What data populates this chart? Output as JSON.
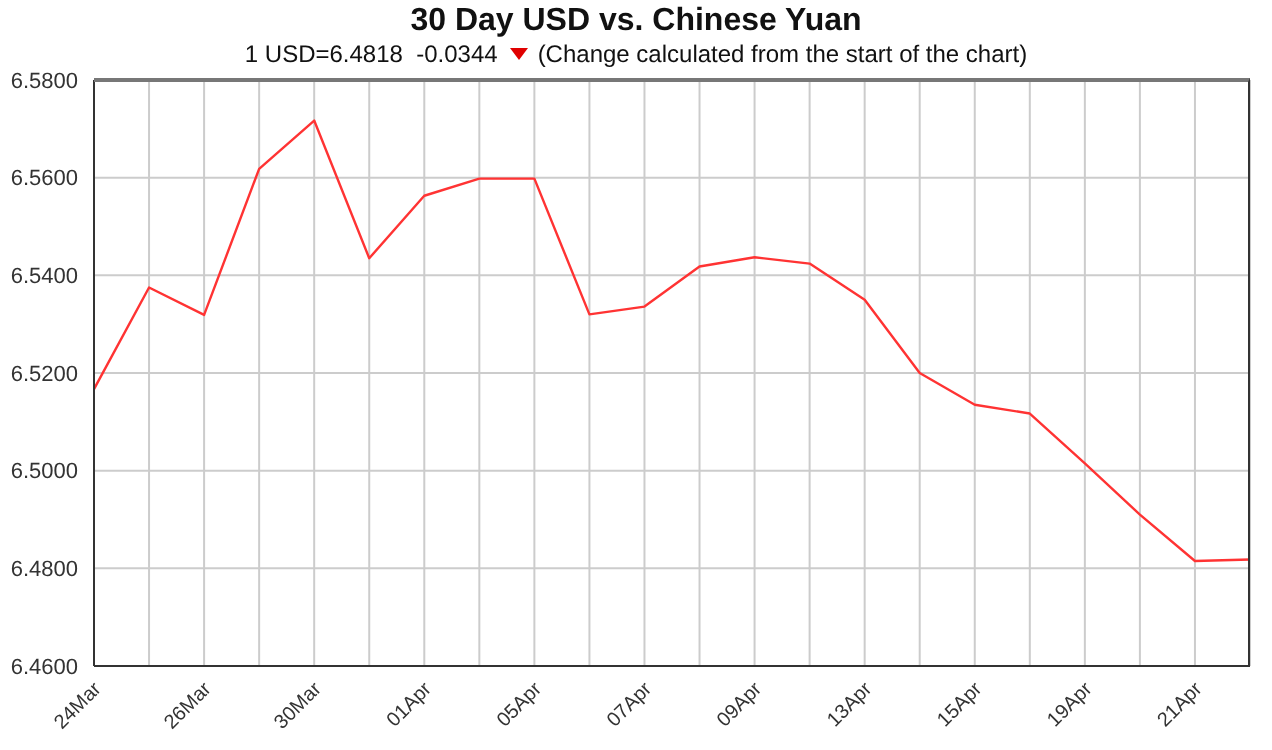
{
  "chart_data": {
    "type": "line",
    "title": "30 Day USD vs. Chinese Yuan",
    "subtitle": "1 USD=6.4818  -0.0344",
    "annotations": [
      "(Change calculated from the start of the chart)"
    ],
    "categories": [
      "24Mar",
      null,
      "26Mar",
      null,
      "30Mar",
      null,
      "01Apr",
      null,
      "05Apr",
      null,
      "07Apr",
      null,
      "09Apr",
      null,
      "13Apr",
      null,
      "15Apr",
      null,
      "19Apr",
      null,
      "21Apr",
      null
    ],
    "series": [
      {
        "color": "#ff3333",
        "values": [
          6.5167,
          6.5375,
          6.5319,
          6.5618,
          6.5717,
          6.5435,
          6.5563,
          6.5598,
          6.5598,
          6.532,
          6.5336,
          6.5418,
          6.5437,
          6.5424,
          6.535,
          6.52,
          6.5135,
          6.5117,
          6.5015,
          6.491,
          6.4815,
          6.4818
        ]
      }
    ],
    "ylim": [
      6.46,
      6.58
    ],
    "yticks": [
      {
        "value": 6.46,
        "label": "6.4600"
      },
      {
        "value": 6.48,
        "label": "6.4800"
      },
      {
        "value": 6.5,
        "label": "6.5000"
      },
      {
        "value": 6.52,
        "label": "6.5200"
      },
      {
        "value": 6.54,
        "label": "6.5400"
      },
      {
        "value": 6.56,
        "label": "6.5600"
      },
      {
        "value": 6.58,
        "label": "6.5800"
      }
    ],
    "grid": true
  }
}
